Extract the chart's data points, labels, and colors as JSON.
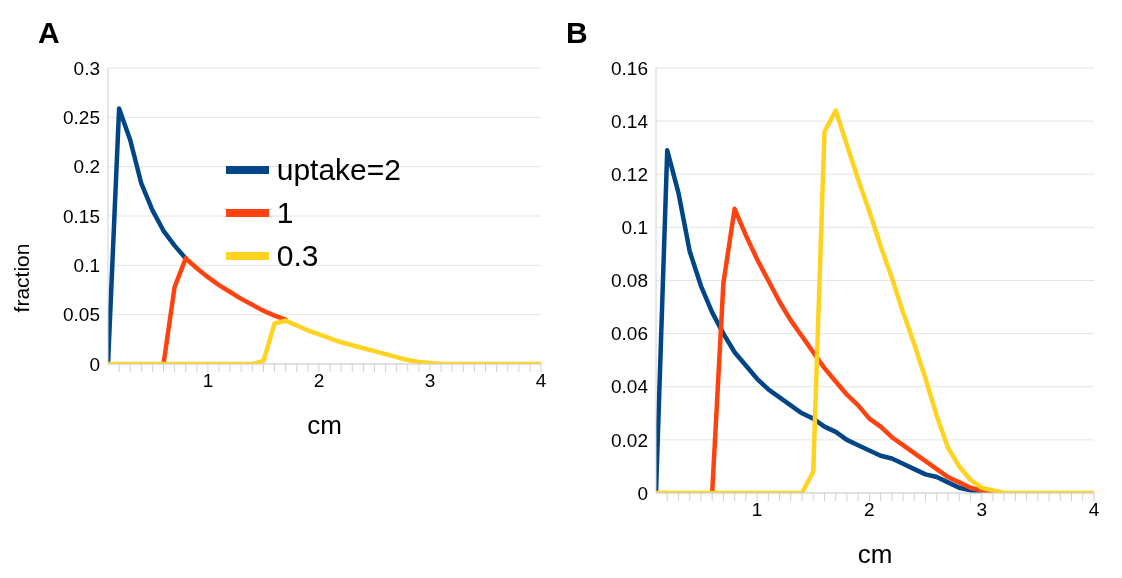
{
  "chart_data": [
    {
      "type": "line",
      "title": "A",
      "xlabel": "cm",
      "ylabel": "fraction",
      "xlim": [
        0.1,
        4
      ],
      "ylim": [
        0,
        0.3
      ],
      "xticks": [
        {
          "value": 0.2,
          "label": null
        },
        {
          "value": 0.3,
          "label": null
        },
        {
          "value": 0.4,
          "label": null
        },
        {
          "value": 0.5,
          "label": null
        },
        {
          "value": 0.6,
          "label": null
        },
        {
          "value": 0.7,
          "label": null
        },
        {
          "value": 0.8,
          "label": null
        },
        {
          "value": 0.9,
          "label": null
        },
        1,
        {
          "value": 1.1,
          "label": null
        },
        {
          "value": 1.2,
          "label": null
        },
        {
          "value": 1.3,
          "label": null
        },
        {
          "value": 1.4,
          "label": null
        },
        {
          "value": 1.5,
          "label": null
        },
        {
          "value": 1.6,
          "label": null
        },
        {
          "value": 1.7,
          "label": null
        },
        {
          "value": 1.8,
          "label": null
        },
        {
          "value": 1.9,
          "label": null
        },
        2,
        {
          "value": 2.1,
          "label": null
        },
        {
          "value": 2.2,
          "label": null
        },
        {
          "value": 2.3,
          "label": null
        },
        {
          "value": 2.4,
          "label": null
        },
        {
          "value": 2.5,
          "label": null
        },
        {
          "value": 2.6,
          "label": null
        },
        {
          "value": 2.7,
          "label": null
        },
        {
          "value": 2.8,
          "label": null
        },
        {
          "value": 2.9,
          "label": null
        },
        3,
        {
          "value": 3.1,
          "label": null
        },
        {
          "value": 3.2,
          "label": null
        },
        {
          "value": 3.3,
          "label": null
        },
        {
          "value": 3.4,
          "label": null
        },
        {
          "value": 3.5,
          "label": null
        },
        {
          "value": 3.6,
          "label": null
        },
        {
          "value": 3.7,
          "label": null
        },
        {
          "value": 3.8,
          "label": null
        },
        {
          "value": 3.9,
          "label": null
        },
        4
      ],
      "yticks": [
        0,
        0.05,
        0.1,
        0.15,
        0.2,
        0.25,
        0.3
      ],
      "grid": "y",
      "legend": "top right",
      "marker": "none",
      "line_style": "solid",
      "series": [
        {
          "name": "uptake=2",
          "color": "#004586",
          "x": [
            0.1,
            0.2,
            0.3,
            0.4,
            0.5,
            0.6,
            0.7,
            0.8
          ],
          "values": [
            0,
            0.259,
            0.227,
            0.183,
            0.156,
            0.135,
            0.12,
            0.107
          ]
        },
        {
          "name": "1",
          "color": "#ff420e",
          "x": [
            0.6,
            0.7,
            0.8,
            0.9,
            1.0,
            1.1,
            1.2,
            1.3,
            1.4,
            1.5,
            1.6,
            1.7
          ],
          "values": [
            0,
            0.078,
            0.107,
            0.097,
            0.088,
            0.08,
            0.073,
            0.066,
            0.06,
            0.054,
            0.049,
            0.045
          ]
        },
        {
          "name": "0.3",
          "color": "#ffd320",
          "x": [
            0.1,
            1.4,
            1.5,
            1.6,
            1.7,
            1.8,
            1.9,
            2.0,
            2.1,
            2.2,
            2.3,
            2.4,
            2.5,
            2.6,
            2.7,
            2.8,
            2.9,
            3.0,
            3.1,
            4.0
          ],
          "values": [
            0,
            0,
            0.003,
            0.041,
            0.044,
            0.039,
            0.034,
            0.03,
            0.026,
            0.022,
            0.019,
            0.016,
            0.013,
            0.01,
            0.007,
            0.004,
            0.002,
            0.001,
            0,
            0
          ]
        }
      ]
    },
    {
      "type": "line",
      "title": "B",
      "xlabel": "cm",
      "xlim": [
        0.1,
        4
      ],
      "ylim": [
        0,
        0.16
      ],
      "xticks": [
        {
          "value": 0.2,
          "label": null
        },
        {
          "value": 0.3,
          "label": null
        },
        {
          "value": 0.4,
          "label": null
        },
        {
          "value": 0.5,
          "label": null
        },
        {
          "value": 0.6,
          "label": null
        },
        {
          "value": 0.7,
          "label": null
        },
        {
          "value": 0.8,
          "label": null
        },
        {
          "value": 0.9,
          "label": null
        },
        1,
        {
          "value": 1.1,
          "label": null
        },
        {
          "value": 1.2,
          "label": null
        },
        {
          "value": 1.3,
          "label": null
        },
        {
          "value": 1.4,
          "label": null
        },
        {
          "value": 1.5,
          "label": null
        },
        {
          "value": 1.6,
          "label": null
        },
        {
          "value": 1.7,
          "label": null
        },
        {
          "value": 1.8,
          "label": null
        },
        {
          "value": 1.9,
          "label": null
        },
        2,
        {
          "value": 2.1,
          "label": null
        },
        {
          "value": 2.2,
          "label": null
        },
        {
          "value": 2.3,
          "label": null
        },
        {
          "value": 2.4,
          "label": null
        },
        {
          "value": 2.5,
          "label": null
        },
        {
          "value": 2.6,
          "label": null
        },
        {
          "value": 2.7,
          "label": null
        },
        {
          "value": 2.8,
          "label": null
        },
        {
          "value": 2.9,
          "label": null
        },
        3,
        {
          "value": 3.1,
          "label": null
        },
        {
          "value": 3.2,
          "label": null
        },
        {
          "value": 3.3,
          "label": null
        },
        {
          "value": 3.4,
          "label": null
        },
        {
          "value": 3.5,
          "label": null
        },
        {
          "value": 3.6,
          "label": null
        },
        {
          "value": 3.7,
          "label": null
        },
        {
          "value": 3.8,
          "label": null
        },
        {
          "value": 3.9,
          "label": null
        },
        4
      ],
      "yticks": [
        0,
        0.02,
        0.04,
        0.06,
        0.08,
        0.1,
        0.12,
        0.14,
        0.16
      ],
      "grid": "y",
      "marker": "none",
      "line_style": "solid",
      "series": [
        {
          "color": "#004586",
          "x": [
            0.1,
            0.2,
            0.3,
            0.4,
            0.5,
            0.6,
            0.7,
            0.8,
            0.9,
            1.0,
            1.1,
            1.2,
            1.3,
            1.4,
            1.5,
            1.6,
            1.7,
            1.8,
            1.9,
            2.0,
            2.1,
            2.2,
            2.3,
            2.4,
            2.5,
            2.6,
            2.7,
            2.8,
            2.9,
            3.0
          ],
          "values": [
            0,
            0.129,
            0.113,
            0.091,
            0.078,
            0.068,
            0.06,
            0.053,
            0.048,
            0.043,
            0.039,
            0.036,
            0.033,
            0.03,
            0.028,
            0.025,
            0.023,
            0.02,
            0.018,
            0.016,
            0.014,
            0.013,
            0.011,
            0.009,
            0.007,
            0.006,
            0.004,
            0.002,
            0.001,
            0
          ]
        },
        {
          "color": "#ff420e",
          "x": [
            0.6,
            0.7,
            0.8,
            0.9,
            1.0,
            1.1,
            1.2,
            1.3,
            1.4,
            1.5,
            1.6,
            1.7,
            1.8,
            1.9,
            2.0,
            2.1,
            2.2,
            2.3,
            2.4,
            2.5,
            2.6,
            2.7,
            2.8,
            2.9,
            3.0,
            3.1
          ],
          "values": [
            0,
            0.079,
            0.107,
            0.097,
            0.088,
            0.08,
            0.072,
            0.065,
            0.059,
            0.053,
            0.047,
            0.042,
            0.037,
            0.033,
            0.028,
            0.025,
            0.021,
            0.018,
            0.015,
            0.012,
            0.009,
            0.006,
            0.004,
            0.002,
            0.001,
            0
          ]
        },
        {
          "color": "#ffd320",
          "x": [
            0.1,
            1.4,
            1.5,
            1.6,
            1.7,
            1.8,
            1.9,
            2.0,
            2.1,
            2.2,
            2.3,
            2.4,
            2.5,
            2.6,
            2.7,
            2.8,
            2.9,
            3.0,
            3.1,
            3.2,
            4.0
          ],
          "values": [
            0,
            0,
            0.008,
            0.136,
            0.144,
            0.131,
            0.118,
            0.106,
            0.093,
            0.081,
            0.068,
            0.056,
            0.043,
            0.029,
            0.017,
            0.01,
            0.005,
            0.002,
            0.001,
            0,
            0
          ]
        }
      ]
    }
  ]
}
